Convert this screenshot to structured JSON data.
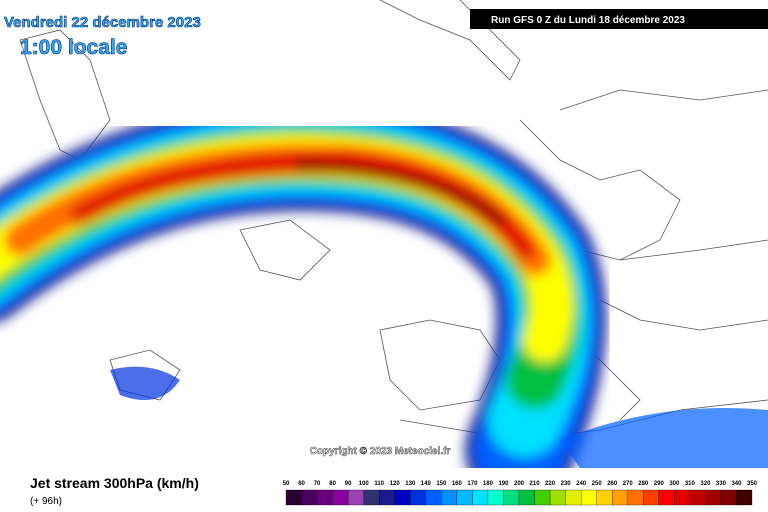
{
  "header": {
    "date": "Vendredi 22 décembre 2023",
    "time": "1:00 locale",
    "run": "Run GFS 0 Z du Lundi 18 décembre 2023"
  },
  "footer": {
    "title": "Jet stream 300hPa (km/h)",
    "subtitle": "(+ 96h)",
    "copyright": "Copyright © 2023 Meteociel.fr"
  },
  "legend": {
    "labels": [
      50,
      60,
      70,
      80,
      90,
      100,
      110,
      120,
      130,
      140,
      150,
      160,
      170,
      180,
      190,
      200,
      210,
      220,
      230,
      240,
      250,
      260,
      270,
      280,
      290,
      300,
      310,
      320,
      330,
      340,
      350
    ],
    "colors": [
      "#2a0030",
      "#4a0060",
      "#6a0080",
      "#8a00a0",
      "#9a40b0",
      "#303070",
      "#1a1a90",
      "#0000c0",
      "#0030e0",
      "#0060ff",
      "#0090ff",
      "#00b8ff",
      "#00e0ff",
      "#00ffd0",
      "#00e080",
      "#00c040",
      "#40d000",
      "#a0e000",
      "#e0f000",
      "#ffff00",
      "#ffd000",
      "#ffa000",
      "#ff7000",
      "#ff4000",
      "#ff0000",
      "#e00000",
      "#c00000",
      "#a00000",
      "#800000",
      "#400000"
    ]
  }
}
